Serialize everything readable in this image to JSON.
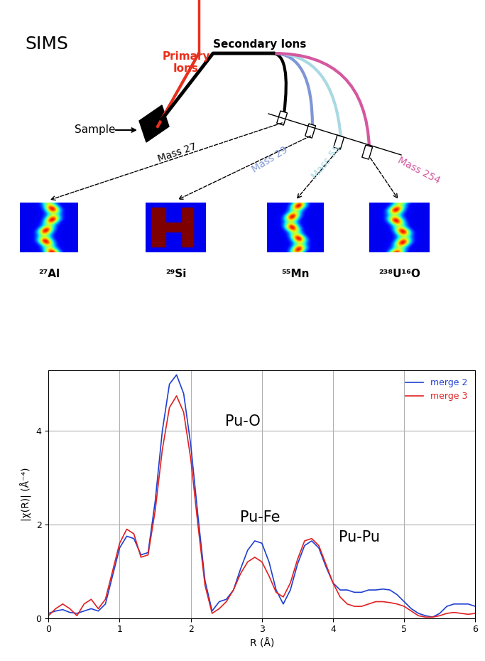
{
  "diagram": {
    "title": "SIMS",
    "labels": {
      "primary": "Primary\nIons",
      "secondary": "Secondary Ions",
      "sample": "Sample"
    },
    "channels": [
      {
        "mass": "Mass 27",
        "species": "²⁷Al",
        "color": "#000000"
      },
      {
        "mass": "Mass 29",
        "species": "²⁹Si",
        "color": "#7f96d6"
      },
      {
        "mass": "Mass 55",
        "species": "⁵⁵Mn",
        "color": "#a9d9e3"
      },
      {
        "mass": "Mass 254",
        "species": "²³⁸U¹⁶O",
        "color": "#d4589f"
      }
    ]
  },
  "chart_data": {
    "type": "line",
    "xlabel": "R (Å)",
    "ylabel": "|χ(R)| (Å⁻⁴)",
    "xlim": [
      0,
      6
    ],
    "ylim": [
      0,
      5.3
    ],
    "xticks": [
      0,
      1,
      2,
      3,
      4,
      5,
      6
    ],
    "yticks": [
      0,
      2,
      4
    ],
    "grid": true,
    "legend": "upper right",
    "x": [
      0.0,
      0.1,
      0.2,
      0.3,
      0.4,
      0.5,
      0.6,
      0.7,
      0.8,
      0.9,
      1.0,
      1.1,
      1.2,
      1.3,
      1.4,
      1.5,
      1.6,
      1.7,
      1.8,
      1.9,
      2.0,
      2.1,
      2.2,
      2.3,
      2.4,
      2.5,
      2.6,
      2.7,
      2.8,
      2.9,
      3.0,
      3.1,
      3.2,
      3.3,
      3.4,
      3.5,
      3.6,
      3.7,
      3.8,
      3.9,
      4.0,
      4.1,
      4.2,
      4.3,
      4.4,
      4.5,
      4.6,
      4.7,
      4.8,
      4.9,
      5.0,
      5.1,
      5.2,
      5.3,
      5.4,
      5.5,
      5.6,
      5.7,
      5.8,
      5.9,
      6.0
    ],
    "series": [
      {
        "name": "merge 2",
        "color": "#1f3fd0",
        "values": [
          0.1,
          0.15,
          0.18,
          0.12,
          0.1,
          0.15,
          0.2,
          0.15,
          0.3,
          0.9,
          1.5,
          1.75,
          1.7,
          1.35,
          1.4,
          2.5,
          4.0,
          5.0,
          5.2,
          4.8,
          3.7,
          2.2,
          0.8,
          0.15,
          0.35,
          0.4,
          0.6,
          1.05,
          1.45,
          1.65,
          1.6,
          1.2,
          0.6,
          0.3,
          0.6,
          1.15,
          1.55,
          1.65,
          1.5,
          1.1,
          0.75,
          0.6,
          0.6,
          0.55,
          0.55,
          0.6,
          0.6,
          0.62,
          0.6,
          0.5,
          0.35,
          0.2,
          0.1,
          0.05,
          0.02,
          0.1,
          0.25,
          0.3,
          0.3,
          0.3,
          0.25
        ]
      },
      {
        "name": "merge 3",
        "color": "#e02020",
        "values": [
          0.05,
          0.2,
          0.3,
          0.2,
          0.05,
          0.3,
          0.4,
          0.2,
          0.4,
          1.0,
          1.6,
          1.9,
          1.8,
          1.3,
          1.35,
          2.3,
          3.6,
          4.5,
          4.75,
          4.4,
          3.4,
          2.0,
          0.7,
          0.1,
          0.2,
          0.35,
          0.6,
          0.95,
          1.2,
          1.3,
          1.2,
          0.9,
          0.55,
          0.45,
          0.75,
          1.25,
          1.65,
          1.7,
          1.55,
          1.15,
          0.75,
          0.45,
          0.3,
          0.25,
          0.25,
          0.3,
          0.35,
          0.35,
          0.33,
          0.3,
          0.25,
          0.15,
          0.05,
          0.02,
          0.02,
          0.05,
          0.1,
          0.12,
          0.1,
          0.08,
          0.1
        ]
      }
    ],
    "annotations": [
      {
        "text": "Pu-O",
        "x": 2.48,
        "y": 4.2
      },
      {
        "text": "Pu-Fe",
        "x": 2.69,
        "y": 2.15
      },
      {
        "text": "Pu-Pu",
        "x": 4.08,
        "y": 1.73
      }
    ]
  }
}
